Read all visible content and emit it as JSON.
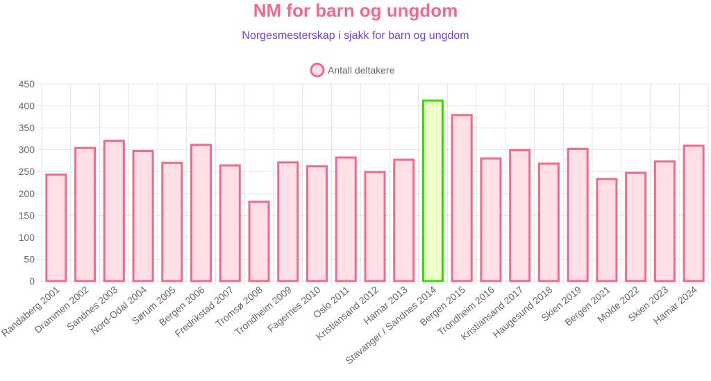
{
  "colors": {
    "title": "#f06a8c",
    "subtitle": "#7b3fcf",
    "bar_fill": "#ffe0e6",
    "bar_stroke": "#f06a8c",
    "highlight_fill": "#eeffcc",
    "highlight_stroke": "#33dd00",
    "grid": "#e5e5e5",
    "text": "#666666"
  },
  "chart_data": {
    "type": "bar",
    "title": "NM for barn og ungdom",
    "subtitle": "Norgesmesterskap i sjakk for barn og ungdom",
    "legend": {
      "label": "Antall deltakere",
      "position": "top"
    },
    "categories": [
      "Randaberg 2001",
      "Drammen 2002",
      "Sandnes 2003",
      "Nord-Odal 2004",
      "Sørum 2005",
      "Bergen 2006",
      "Fredrikstad 2007",
      "Tromsø 2008",
      "Trondheim 2009",
      "Fagernes 2010",
      "Oslo 2011",
      "Kristiansand 2012",
      "Hamar 2013",
      "Stavanger / Sandnes 2014",
      "Bergen 2015",
      "Trondheim 2016",
      "Kristiansand 2017",
      "Haugesund 2018",
      "Skien 2019",
      "Bergen 2021",
      "Molde 2022",
      "Skien 2023",
      "Hamar 2024"
    ],
    "series": [
      {
        "name": "Antall deltakere",
        "values": [
          243,
          304,
          320,
          297,
          270,
          311,
          264,
          181,
          271,
          262,
          282,
          249,
          277,
          412,
          379,
          280,
          299,
          268,
          302,
          233,
          247,
          273,
          309
        ]
      }
    ],
    "highlight_index": 13,
    "ylim": [
      0,
      450
    ],
    "y_ticks": [
      0,
      50,
      100,
      150,
      200,
      250,
      300,
      350,
      400,
      450
    ],
    "grid": true
  }
}
